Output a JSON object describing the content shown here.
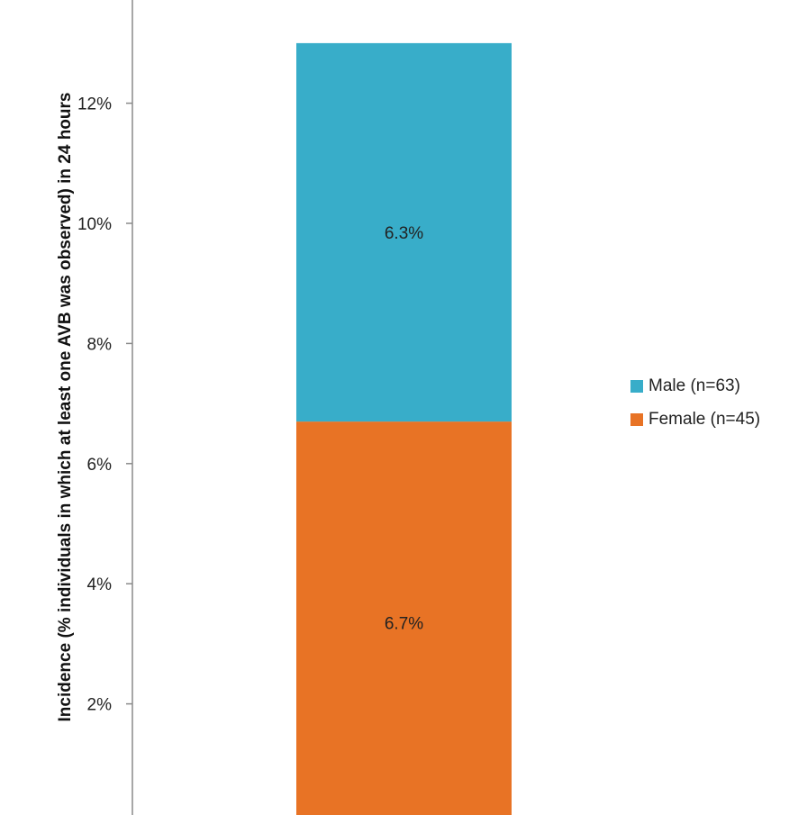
{
  "chart_data": {
    "type": "bar",
    "stacked": true,
    "categories": [
      ""
    ],
    "series": [
      {
        "name": "Female (n=45)",
        "values": [
          6.7
        ],
        "label": "6.7%",
        "color": "#E87325"
      },
      {
        "name": "Male (n=63)",
        "values": [
          6.3
        ],
        "label": "6.3%",
        "color": "#38ADC9"
      }
    ],
    "ylabel": "Incidence (% individuals in which at least one AVB was observed) in 24 hours",
    "ylim": [
      0,
      13.5
    ],
    "yticks": [
      2,
      4,
      6,
      8,
      10,
      12
    ],
    "ytick_labels": [
      "2%",
      "4%",
      "6%",
      "8%",
      "10%",
      "12%"
    ],
    "grid": false,
    "legend_position": "right"
  }
}
